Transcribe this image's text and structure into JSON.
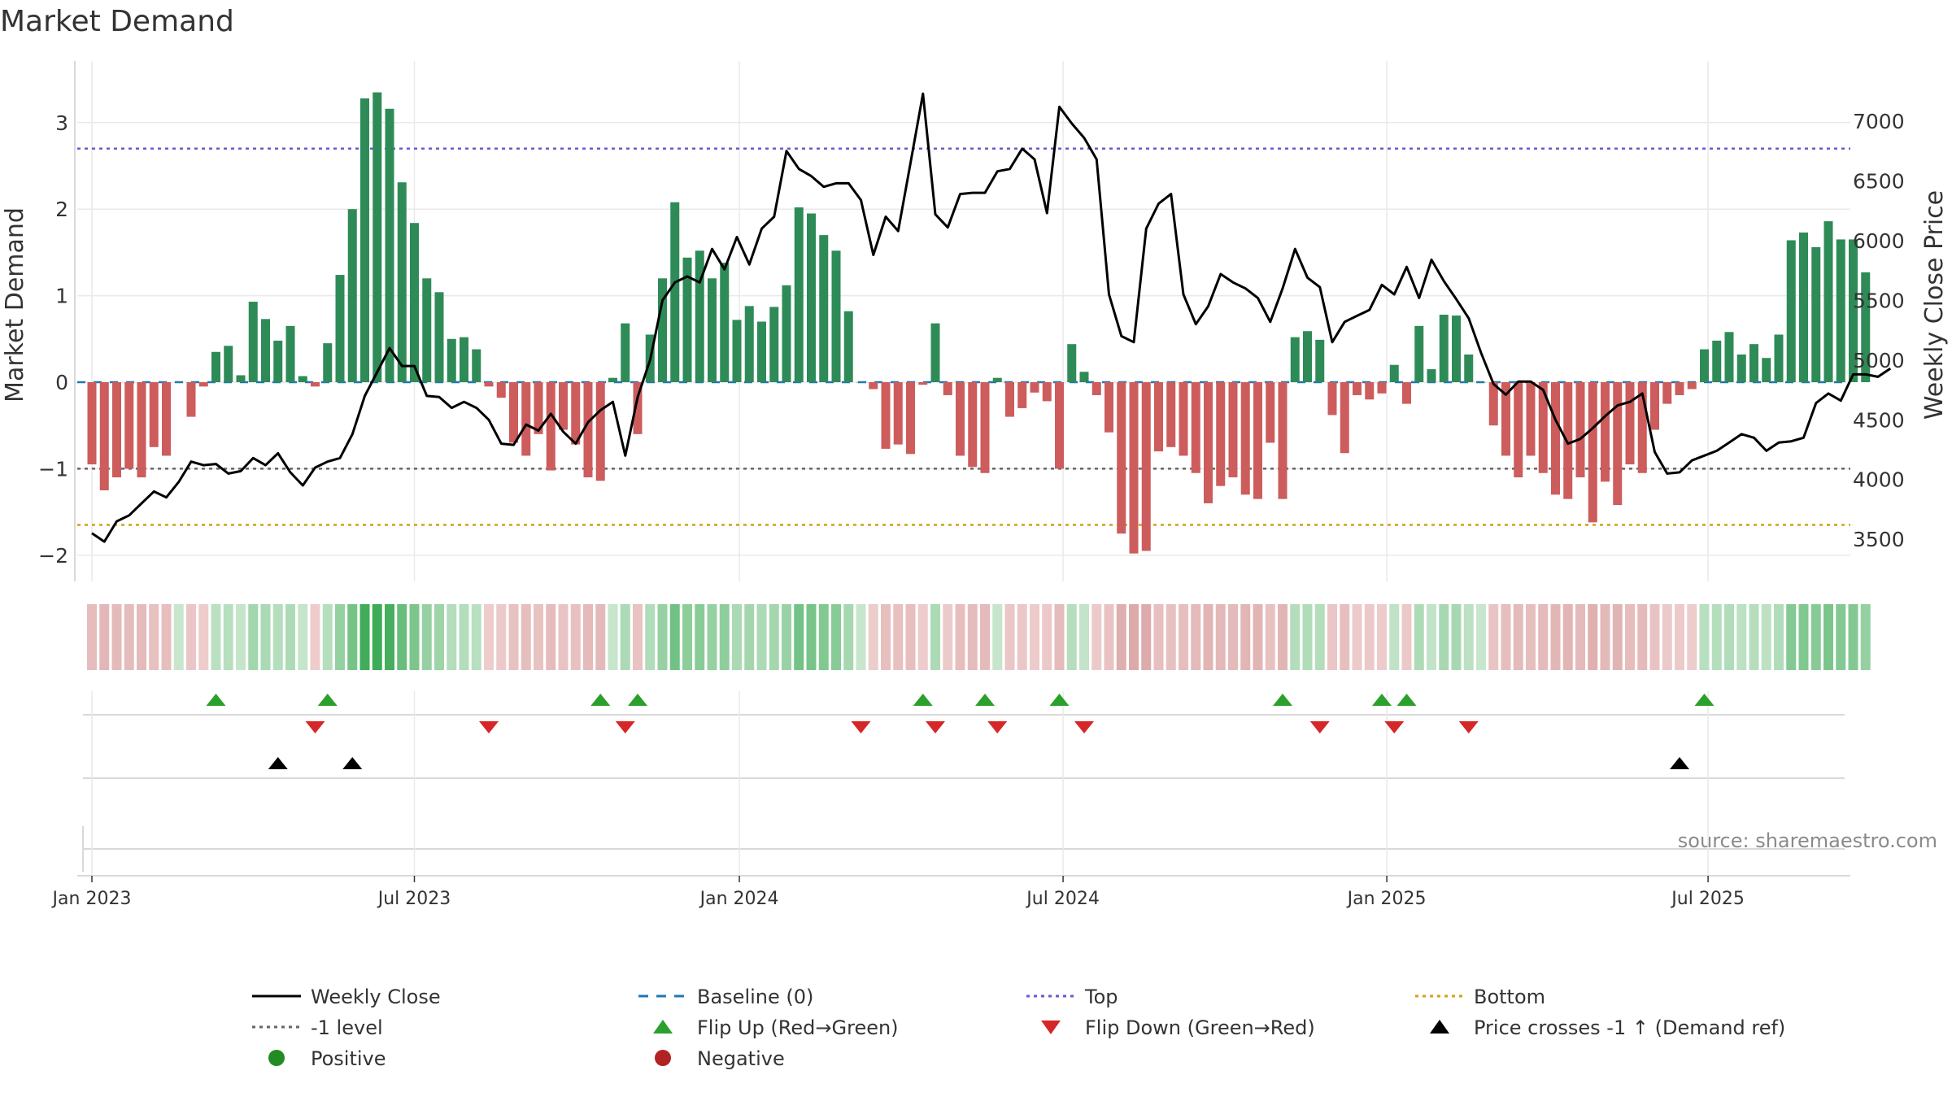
{
  "chart_data": {
    "type": "bar",
    "title": "Market Demand",
    "ylabel_left": "Market Demand",
    "ylabel_right": "Weekly Close Price",
    "source": "source: sharemaestro.com",
    "ylim_left": [
      -2.25,
      3.6
    ],
    "ylim_right": [
      3250,
      7350
    ],
    "yticks_left": [
      -2,
      -1,
      0,
      1,
      2,
      3
    ],
    "yticks_right": [
      3500,
      4000,
      4500,
      5000,
      5500,
      6000,
      6500,
      7000
    ],
    "x_ticks": [
      {
        "week": 0,
        "label": "Jan 2023"
      },
      {
        "week": 26,
        "label": "Jul 2023"
      },
      {
        "week": 52.2,
        "label": "Jan 2024"
      },
      {
        "week": 78.3,
        "label": "Jul 2024"
      },
      {
        "week": 104.4,
        "label": "Jan 2025"
      },
      {
        "week": 130.3,
        "label": "Jul 2025"
      }
    ],
    "reference_lines": {
      "top": 2.7,
      "bottom": -1.65,
      "minus_one": -1.0,
      "baseline": 0
    },
    "colors": {
      "positive": "#2e8b57",
      "negative": "#cd5c5c",
      "price": "#000000",
      "top": "#6a5acd",
      "bottom": "#d4a017",
      "minus_one": "#666666",
      "baseline": "#1f77b4",
      "flip_up": "#2ca02c",
      "flip_down": "#d62728"
    },
    "demand": [
      -0.95,
      -1.25,
      -1.1,
      -1.0,
      -1.1,
      -0.75,
      -0.85,
      0.0,
      -0.4,
      -0.05,
      0.35,
      0.42,
      0.08,
      0.93,
      0.73,
      0.48,
      0.65,
      0.07,
      -0.05,
      0.45,
      1.24,
      2.0,
      3.28,
      3.35,
      3.16,
      2.31,
      1.84,
      1.2,
      1.04,
      0.5,
      0.52,
      0.38,
      -0.05,
      -0.18,
      -0.7,
      -0.85,
      -0.6,
      -1.02,
      -0.55,
      -0.72,
      -1.1,
      -1.14,
      0.05,
      0.68,
      -0.6,
      0.55,
      1.2,
      2.08,
      1.44,
      1.52,
      1.2,
      1.38,
      0.72,
      0.88,
      0.7,
      0.87,
      1.12,
      2.02,
      1.95,
      1.7,
      1.52,
      0.82,
      0.0,
      -0.08,
      -0.77,
      -0.72,
      -0.83,
      -0.03,
      0.68,
      -0.15,
      -0.85,
      -0.98,
      -1.05,
      0.05,
      -0.4,
      -0.3,
      -0.12,
      -0.22,
      -1.0,
      0.44,
      0.12,
      -0.15,
      -0.58,
      -1.75,
      -1.98,
      -1.95,
      -0.8,
      -0.75,
      -0.85,
      -1.05,
      -1.4,
      -1.2,
      -1.1,
      -1.3,
      -1.35,
      -0.7,
      -1.35,
      0.52,
      0.59,
      0.49,
      -0.38,
      -0.82,
      -0.15,
      -0.2,
      -0.13,
      0.2,
      -0.25,
      0.65,
      0.15,
      0.78,
      0.77,
      0.32,
      0.0,
      -0.5,
      -0.85,
      -1.1,
      -0.85,
      -1.05,
      -1.3,
      -1.35,
      -1.1,
      -1.62,
      -1.15,
      -1.42,
      -0.95,
      -1.05,
      -0.55,
      -0.25,
      -0.15,
      -0.08,
      0.38,
      0.48,
      0.58,
      0.32,
      0.44,
      0.28,
      0.55,
      1.64,
      1.73,
      1.56,
      1.86,
      1.65,
      1.65,
      1.27
    ],
    "weekly_close": [
      3550,
      3480,
      3650,
      3700,
      3800,
      3900,
      3850,
      3980,
      4150,
      4120,
      4130,
      4050,
      4070,
      4180,
      4120,
      4220,
      4060,
      3950,
      4100,
      4150,
      4180,
      4380,
      4700,
      4900,
      5100,
      4950,
      4950,
      4700,
      4690,
      4600,
      4650,
      4600,
      4500,
      4300,
      4290,
      4460,
      4410,
      4550,
      4400,
      4300,
      4480,
      4580,
      4650,
      4200,
      4690,
      5000,
      5500,
      5650,
      5700,
      5650,
      5930,
      5760,
      6030,
      5800,
      6100,
      6200,
      6750,
      6600,
      6540,
      6450,
      6480,
      6480,
      6340,
      5880,
      6200,
      6080,
      6650,
      7230,
      6220,
      6110,
      6390,
      6400,
      6400,
      6580,
      6600,
      6770,
      6680,
      6230,
      7120,
      6980,
      6860,
      6680,
      5550,
      5200,
      5150,
      6100,
      6310,
      6390,
      5550,
      5300,
      5450,
      5720,
      5650,
      5600,
      5520,
      5320,
      5600,
      5930,
      5690,
      5610,
      5150,
      5320,
      5370,
      5420,
      5630,
      5550,
      5780,
      5520,
      5840,
      5660,
      5510,
      5350,
      5060,
      4800,
      4710,
      4820,
      4820,
      4750,
      4500,
      4300,
      4340,
      4430,
      4530,
      4620,
      4650,
      4720,
      4230,
      4050,
      4060,
      4160,
      4200,
      4240,
      4310,
      4380,
      4350,
      4240,
      4310,
      4320,
      4350,
      4640,
      4720,
      4660,
      4880,
      4880,
      4860,
      4930
    ],
    "flip_up_weeks": [
      10,
      19,
      41,
      44,
      67,
      72,
      78,
      96,
      104,
      106,
      130
    ],
    "flip_down_weeks": [
      18,
      32,
      43,
      62,
      68,
      73,
      80,
      99,
      105,
      111
    ],
    "price_cross_weeks": [
      15,
      21,
      128
    ]
  },
  "legend": [
    {
      "label": "Weekly Close",
      "icon": "solid-line-icon"
    },
    {
      "label": "Baseline (0)",
      "icon": "dashed-line-icon"
    },
    {
      "label": "Top",
      "icon": "dotted-line-icon"
    },
    {
      "label": "Bottom",
      "icon": "dotted-line-icon"
    },
    {
      "label": "-1 level",
      "icon": "dotted-line-icon"
    },
    {
      "label": "Flip Up (Red→Green)",
      "icon": "triangle-up-icon"
    },
    {
      "label": "Flip Down (Green→Red)",
      "icon": "triangle-down-icon"
    },
    {
      "label": "Price crosses -1 ↑ (Demand ref)",
      "icon": "triangle-up-icon"
    },
    {
      "label": "Positive",
      "icon": "circle-icon"
    },
    {
      "label": "Negative",
      "icon": "circle-icon"
    }
  ]
}
